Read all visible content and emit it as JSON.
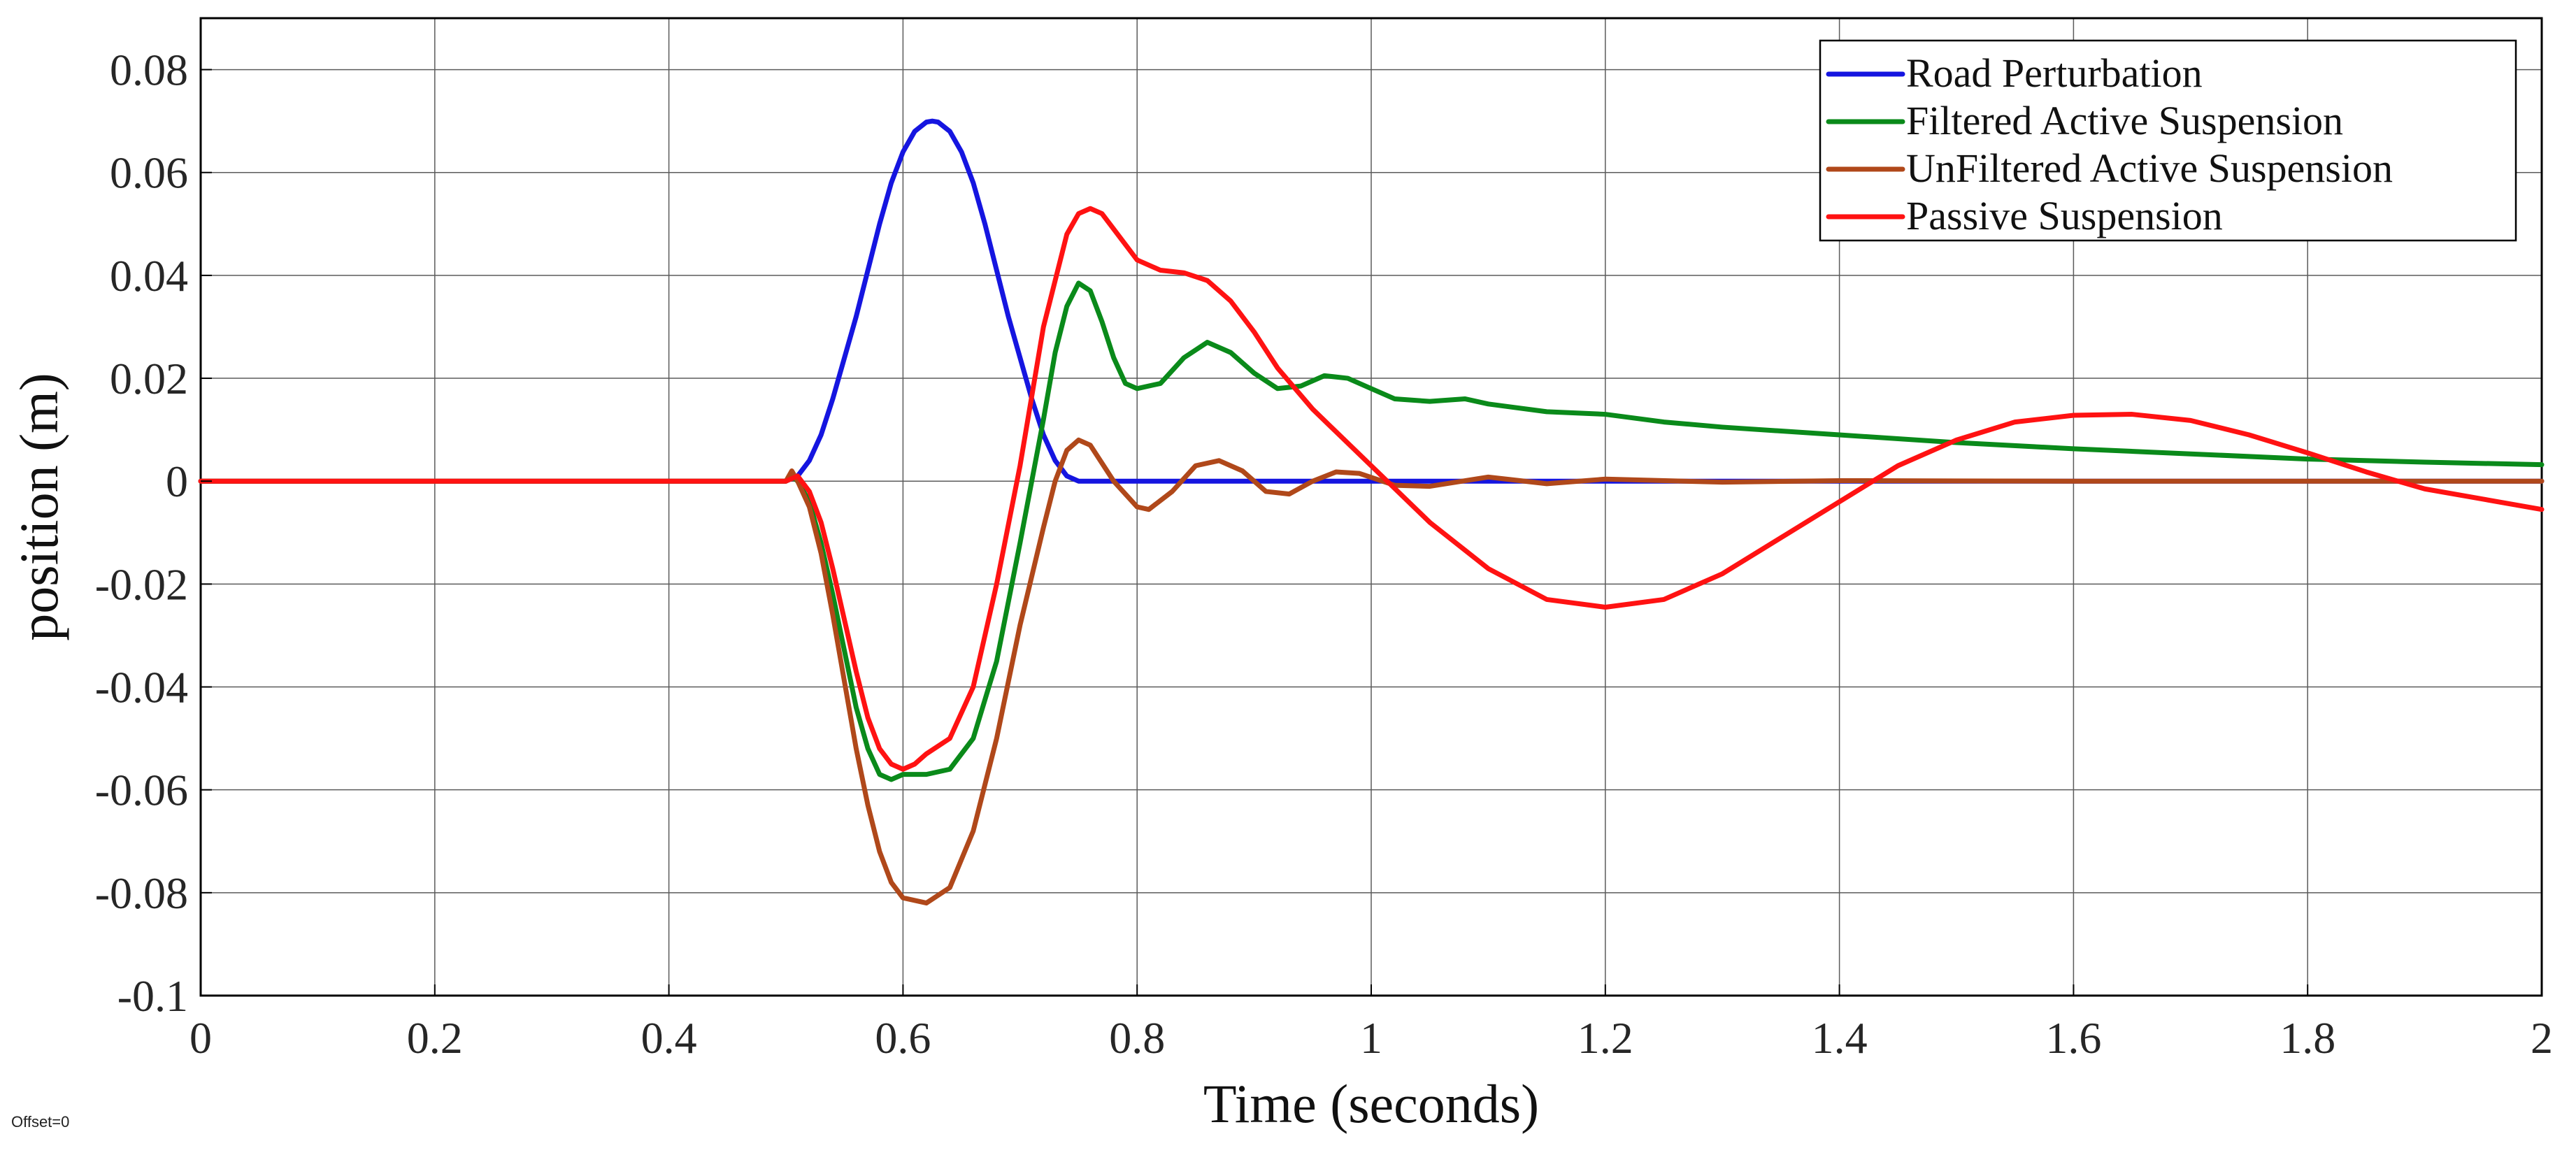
{
  "chart_data": {
    "type": "line",
    "title": "",
    "xlabel": "Time (seconds)",
    "ylabel": "position (m)",
    "xlim": [
      0,
      2
    ],
    "ylim": [
      -0.1,
      0.09
    ],
    "grid": true,
    "legend_position": "top-right",
    "footnote": "Offset=0",
    "xticks": [
      {
        "value": 0,
        "label": "0"
      },
      {
        "value": 0.2,
        "label": "0.2"
      },
      {
        "value": 0.4,
        "label": "0.4"
      },
      {
        "value": 0.6,
        "label": "0.6"
      },
      {
        "value": 0.8,
        "label": "0.8"
      },
      {
        "value": 1,
        "label": "1"
      },
      {
        "value": 1.2,
        "label": "1.2"
      },
      {
        "value": 1.4,
        "label": "1.4"
      },
      {
        "value": 1.6,
        "label": "1.6"
      },
      {
        "value": 1.8,
        "label": "1.8"
      },
      {
        "value": 2,
        "label": "2"
      }
    ],
    "yticks": [
      {
        "value": 0.08,
        "label": "0.08"
      },
      {
        "value": 0.06,
        "label": "0.06"
      },
      {
        "value": 0.04,
        "label": "0.04"
      },
      {
        "value": 0.02,
        "label": "0.02"
      },
      {
        "value": 0,
        "label": "0"
      },
      {
        "value": -0.02,
        "label": "-0.02"
      },
      {
        "value": -0.04,
        "label": "-0.04"
      },
      {
        "value": -0.06,
        "label": "-0.06"
      },
      {
        "value": -0.08,
        "label": "-0.08"
      },
      {
        "value": -0.1,
        "label": "-0.1"
      }
    ],
    "series": [
      {
        "name": "Road Perturbation",
        "color": "#1515e0",
        "points": [
          [
            0,
            0
          ],
          [
            0.5,
            0
          ],
          [
            0.51,
            0.001
          ],
          [
            0.52,
            0.004
          ],
          [
            0.53,
            0.009
          ],
          [
            0.54,
            0.016
          ],
          [
            0.55,
            0.024
          ],
          [
            0.56,
            0.032
          ],
          [
            0.57,
            0.041
          ],
          [
            0.58,
            0.05
          ],
          [
            0.59,
            0.058
          ],
          [
            0.6,
            0.064
          ],
          [
            0.61,
            0.068
          ],
          [
            0.62,
            0.0698
          ],
          [
            0.625,
            0.07
          ],
          [
            0.63,
            0.0698
          ],
          [
            0.64,
            0.068
          ],
          [
            0.65,
            0.064
          ],
          [
            0.66,
            0.058
          ],
          [
            0.67,
            0.05
          ],
          [
            0.68,
            0.041
          ],
          [
            0.69,
            0.032
          ],
          [
            0.7,
            0.024
          ],
          [
            0.71,
            0.016
          ],
          [
            0.72,
            0.009
          ],
          [
            0.73,
            0.004
          ],
          [
            0.74,
            0.001
          ],
          [
            0.75,
            0
          ],
          [
            2,
            0
          ]
        ]
      },
      {
        "name": "Filtered Active Suspension",
        "color": "#0a8a1a",
        "points": [
          [
            0,
            0
          ],
          [
            0.5,
            0
          ],
          [
            0.505,
            0.001
          ],
          [
            0.51,
            0
          ],
          [
            0.52,
            -0.004
          ],
          [
            0.53,
            -0.012
          ],
          [
            0.54,
            -0.022
          ],
          [
            0.55,
            -0.033
          ],
          [
            0.56,
            -0.044
          ],
          [
            0.57,
            -0.052
          ],
          [
            0.58,
            -0.057
          ],
          [
            0.59,
            -0.058
          ],
          [
            0.6,
            -0.057
          ],
          [
            0.62,
            -0.057
          ],
          [
            0.64,
            -0.056
          ],
          [
            0.66,
            -0.05
          ],
          [
            0.68,
            -0.035
          ],
          [
            0.7,
            -0.012
          ],
          [
            0.72,
            0.012
          ],
          [
            0.73,
            0.025
          ],
          [
            0.74,
            0.034
          ],
          [
            0.75,
            0.0385
          ],
          [
            0.76,
            0.037
          ],
          [
            0.77,
            0.031
          ],
          [
            0.78,
            0.024
          ],
          [
            0.79,
            0.019
          ],
          [
            0.8,
            0.018
          ],
          [
            0.82,
            0.019
          ],
          [
            0.84,
            0.024
          ],
          [
            0.86,
            0.027
          ],
          [
            0.88,
            0.025
          ],
          [
            0.9,
            0.021
          ],
          [
            0.92,
            0.018
          ],
          [
            0.94,
            0.0185
          ],
          [
            0.96,
            0.0205
          ],
          [
            0.98,
            0.02
          ],
          [
            1.0,
            0.018
          ],
          [
            1.02,
            0.016
          ],
          [
            1.05,
            0.0155
          ],
          [
            1.08,
            0.016
          ],
          [
            1.1,
            0.015
          ],
          [
            1.15,
            0.0135
          ],
          [
            1.2,
            0.013
          ],
          [
            1.25,
            0.0115
          ],
          [
            1.3,
            0.0105
          ],
          [
            1.4,
            0.009
          ],
          [
            1.5,
            0.0075
          ],
          [
            1.6,
            0.0063
          ],
          [
            1.7,
            0.0053
          ],
          [
            1.8,
            0.0043
          ],
          [
            1.9,
            0.0037
          ],
          [
            2.0,
            0.0032
          ]
        ]
      },
      {
        "name": "UnFiltered Active Suspension",
        "color": "#b0481a",
        "points": [
          [
            0,
            0
          ],
          [
            0.5,
            0
          ],
          [
            0.505,
            0.002
          ],
          [
            0.51,
            0
          ],
          [
            0.52,
            -0.005
          ],
          [
            0.53,
            -0.014
          ],
          [
            0.54,
            -0.026
          ],
          [
            0.55,
            -0.039
          ],
          [
            0.56,
            -0.052
          ],
          [
            0.57,
            -0.063
          ],
          [
            0.58,
            -0.072
          ],
          [
            0.59,
            -0.078
          ],
          [
            0.6,
            -0.081
          ],
          [
            0.62,
            -0.082
          ],
          [
            0.64,
            -0.079
          ],
          [
            0.66,
            -0.068
          ],
          [
            0.68,
            -0.05
          ],
          [
            0.7,
            -0.028
          ],
          [
            0.72,
            -0.009
          ],
          [
            0.73,
            0
          ],
          [
            0.74,
            0.006
          ],
          [
            0.75,
            0.008
          ],
          [
            0.76,
            0.007
          ],
          [
            0.78,
            0
          ],
          [
            0.8,
            -0.005
          ],
          [
            0.81,
            -0.0055
          ],
          [
            0.83,
            -0.002
          ],
          [
            0.85,
            0.003
          ],
          [
            0.87,
            0.004
          ],
          [
            0.89,
            0.002
          ],
          [
            0.91,
            -0.002
          ],
          [
            0.93,
            -0.0025
          ],
          [
            0.95,
            0
          ],
          [
            0.97,
            0.0018
          ],
          [
            0.99,
            0.0015
          ],
          [
            1.02,
            -0.0008
          ],
          [
            1.05,
            -0.001
          ],
          [
            1.1,
            0.0008
          ],
          [
            1.15,
            -0.0005
          ],
          [
            1.2,
            0.0004
          ],
          [
            1.3,
            -0.0002
          ],
          [
            1.4,
            0.0001
          ],
          [
            1.6,
            0
          ],
          [
            2.0,
            0
          ]
        ]
      },
      {
        "name": "Passive Suspension",
        "color": "#ff1212",
        "points": [
          [
            0,
            0
          ],
          [
            0.5,
            0
          ],
          [
            0.51,
            0.001
          ],
          [
            0.52,
            -0.002
          ],
          [
            0.53,
            -0.008
          ],
          [
            0.54,
            -0.017
          ],
          [
            0.55,
            -0.027
          ],
          [
            0.56,
            -0.037
          ],
          [
            0.57,
            -0.046
          ],
          [
            0.58,
            -0.052
          ],
          [
            0.59,
            -0.055
          ],
          [
            0.6,
            -0.056
          ],
          [
            0.61,
            -0.055
          ],
          [
            0.62,
            -0.053
          ],
          [
            0.64,
            -0.05
          ],
          [
            0.66,
            -0.04
          ],
          [
            0.68,
            -0.02
          ],
          [
            0.7,
            0.003
          ],
          [
            0.72,
            0.03
          ],
          [
            0.74,
            0.048
          ],
          [
            0.75,
            0.052
          ],
          [
            0.76,
            0.053
          ],
          [
            0.77,
            0.052
          ],
          [
            0.78,
            0.049
          ],
          [
            0.8,
            0.043
          ],
          [
            0.82,
            0.041
          ],
          [
            0.84,
            0.0405
          ],
          [
            0.86,
            0.039
          ],
          [
            0.88,
            0.035
          ],
          [
            0.9,
            0.029
          ],
          [
            0.92,
            0.022
          ],
          [
            0.95,
            0.014
          ],
          [
            1.0,
            0.003
          ],
          [
            1.05,
            -0.008
          ],
          [
            1.1,
            -0.017
          ],
          [
            1.15,
            -0.023
          ],
          [
            1.2,
            -0.0245
          ],
          [
            1.25,
            -0.023
          ],
          [
            1.3,
            -0.018
          ],
          [
            1.35,
            -0.011
          ],
          [
            1.4,
            -0.004
          ],
          [
            1.45,
            0.003
          ],
          [
            1.5,
            0.008
          ],
          [
            1.55,
            0.0115
          ],
          [
            1.6,
            0.0128
          ],
          [
            1.65,
            0.013
          ],
          [
            1.7,
            0.0118
          ],
          [
            1.75,
            0.009
          ],
          [
            1.8,
            0.0055
          ],
          [
            1.85,
            0.0018
          ],
          [
            1.9,
            -0.0015
          ],
          [
            1.95,
            -0.0035
          ],
          [
            2.0,
            -0.0055
          ]
        ]
      }
    ]
  }
}
